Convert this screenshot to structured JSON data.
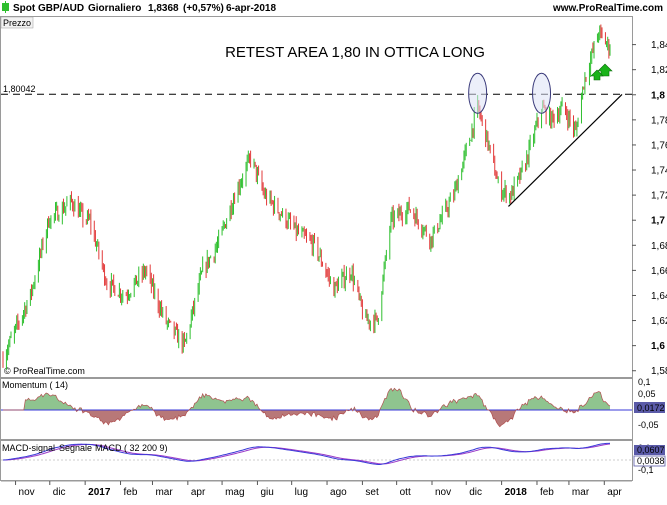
{
  "header": {
    "instrument": "Spot GBP/AUD",
    "timeframe": "Giornaliero",
    "last_price": "1,8368",
    "change": "(+0,57%)",
    "date": "6-apr-2018",
    "site": "www.ProRealTime.com"
  },
  "main_panel": {
    "label": "Prezzo",
    "footer_credit": "© ProRealTime.com",
    "level_label": "1,80042",
    "level_value": 1.80042
  },
  "annotation": {
    "text": "RETEST AREA 1,80 IN OTTICA LONG"
  },
  "momentum_panel": {
    "label": "Momentum ( 14)",
    "value_label": "0,0172",
    "ticks": [
      "0,1",
      "0,05",
      "-0,05"
    ]
  },
  "macd_panel": {
    "label_signal": "MACD-signal",
    "label_segnale": "Segnale",
    "label_macd": "MACD ( 32 200 9)",
    "value1": "0,0607",
    "value2": "0,0038",
    "ticks": [
      "0,1",
      "-0,1"
    ]
  },
  "colors": {
    "up_candle": "#2fbf2f",
    "down_candle": "#e23a3a",
    "momentum_pos": "#8fc48f",
    "momentum_neg": "#b87878",
    "macd_line": "#3a3ad8",
    "signal_line": "#9b3ac8",
    "value_box": "#5a5aa8",
    "arrow": "#19b319"
  },
  "chart_data": {
    "type": "candlestick",
    "title": "Spot GBP/AUD",
    "y_range": [
      1.575,
      1.862
    ],
    "y_ticks": [
      "1,84",
      "1,82",
      "1,8",
      "1,78",
      "1,76",
      "1,74",
      "1,72",
      "1,7",
      "1,68",
      "1,66",
      "1,64",
      "1,62",
      "1,6",
      "1,58"
    ],
    "x_ticks": [
      "nov",
      "dic",
      "2017",
      "feb",
      "mar",
      "apr",
      "mag",
      "giu",
      "lug",
      "ago",
      "set",
      "ott",
      "nov",
      "dic",
      "2018",
      "feb",
      "mar",
      "apr"
    ],
    "x_range": [
      "2016-10-21",
      "2018-04-06"
    ],
    "price_path": [
      [
        "2016-10-21",
        1.59
      ],
      [
        "2016-11-14",
        1.64
      ],
      [
        "2016-11-30",
        1.7
      ],
      [
        "2016-12-20",
        1.715
      ],
      [
        "2017-01-01",
        1.7
      ],
      [
        "2017-01-05",
        1.7
      ],
      [
        "2017-01-20",
        1.65
      ],
      [
        "2017-02-05",
        1.64
      ],
      [
        "2017-02-23",
        1.66
      ],
      [
        "2017-03-12",
        1.62
      ],
      [
        "2017-03-29",
        1.6
      ],
      [
        "2017-04-14",
        1.66
      ],
      [
        "2017-04-27",
        1.68
      ],
      [
        "2017-05-12",
        1.72
      ],
      [
        "2017-05-26",
        1.75
      ],
      [
        "2017-06-07",
        1.72
      ],
      [
        "2017-06-22",
        1.705
      ],
      [
        "2017-07-06",
        1.69
      ],
      [
        "2017-07-21",
        1.68
      ],
      [
        "2017-08-07",
        1.645
      ],
      [
        "2017-08-22",
        1.66
      ],
      [
        "2017-09-03",
        1.62
      ],
      [
        "2017-09-14",
        1.62
      ],
      [
        "2017-09-26",
        1.7
      ],
      [
        "2017-10-12",
        1.71
      ],
      [
        "2017-10-31",
        1.685
      ],
      [
        "2017-11-20",
        1.72
      ],
      [
        "2017-12-04",
        1.765
      ],
      [
        "2017-12-11",
        1.79
      ],
      [
        "2017-12-19",
        1.765
      ],
      [
        "2017-12-30",
        1.725
      ],
      [
        "2018-01-09",
        1.72
      ],
      [
        "2018-01-20",
        1.74
      ],
      [
        "2018-01-30",
        1.77
      ],
      [
        "2018-02-05",
        1.79
      ],
      [
        "2018-02-13",
        1.78
      ],
      [
        "2018-02-24",
        1.79
      ],
      [
        "2018-03-07",
        1.77
      ],
      [
        "2018-03-14",
        1.81
      ],
      [
        "2018-03-27",
        1.85
      ],
      [
        "2018-04-06",
        1.8368
      ]
    ],
    "horizontal_level": 1.80042,
    "trendline": [
      [
        "2018-01-07",
        1.711
      ],
      [
        "2018-04-06",
        1.8
      ]
    ],
    "retest_circles": [
      "2017-12-11",
      "2018-02-05"
    ]
  }
}
